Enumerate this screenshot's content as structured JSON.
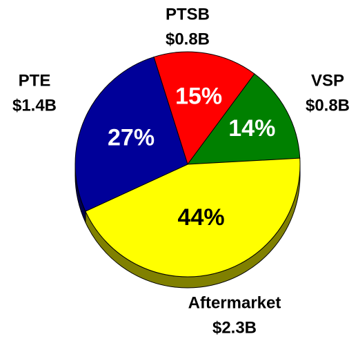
{
  "chart_data": {
    "type": "pie",
    "categories": [
      "PTSB",
      "VSP",
      "Aftermarket",
      "PTE"
    ],
    "values": [
      15,
      14,
      44,
      27
    ],
    "value_labels": [
      "15%",
      "14%",
      "44%",
      "27%"
    ],
    "amount_labels": [
      "$0.8B",
      "$0.8B",
      "$2.3B",
      "$1.4B"
    ],
    "colors": [
      "#ff0000",
      "#008000",
      "#ffff00",
      "#000099"
    ],
    "side_colors": [
      "#800000",
      "#004000",
      "#808000",
      "#00004d"
    ]
  }
}
